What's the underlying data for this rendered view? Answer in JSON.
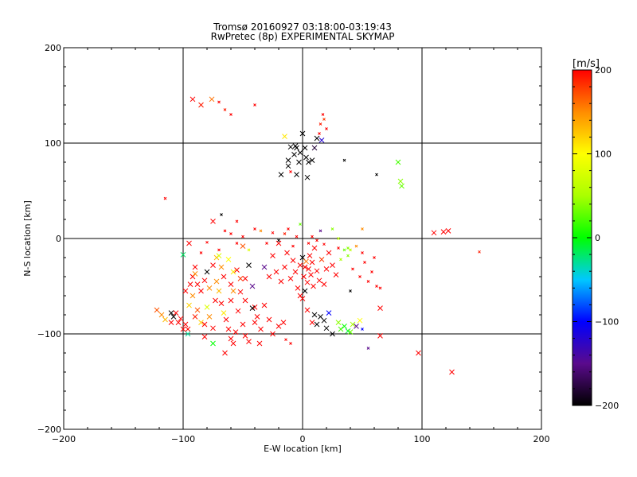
{
  "chart_data": {
    "type": "scatter",
    "title": "Tromsø 20160927 03:18:00-03:19:43",
    "subtitle": "RwPretec (8p) EXPERIMENTAL SKYMAP",
    "xlabel": "E-W location [km]",
    "ylabel": "N-S location [km]",
    "xlim": [
      -200,
      200
    ],
    "ylim": [
      -200,
      200
    ],
    "xticks": [
      -200,
      -100,
      0,
      100,
      200
    ],
    "yticks": [
      -200,
      -100,
      0,
      100,
      200
    ],
    "xtick_labels": [
      "−200",
      "−100",
      "0",
      "100",
      "200"
    ],
    "ytick_labels": [
      "−200",
      "−100",
      "0",
      "100",
      "200"
    ],
    "grid_lines": [
      -100,
      0,
      100
    ],
    "colorbar": {
      "label": "[m/s]",
      "range": [
        -200,
        200
      ],
      "ticks": [
        200,
        100,
        0,
        -100,
        -200
      ],
      "tick_labels": [
        "200",
        "100",
        "0",
        "−100",
        "−200"
      ],
      "position": "right"
    },
    "marker": "x",
    "points": [
      [
        -92,
        146,
        200,
        "l"
      ],
      [
        -85,
        140,
        190,
        "l"
      ],
      [
        -76,
        146,
        160,
        "l"
      ],
      [
        -70,
        143,
        200,
        "s"
      ],
      [
        -65,
        135,
        190,
        "s"
      ],
      [
        -60,
        130,
        200,
        "s"
      ],
      [
        -40,
        140,
        200,
        "s"
      ],
      [
        -15,
        107,
        110,
        "l"
      ],
      [
        -10,
        70,
        200,
        "s"
      ],
      [
        -7,
        88,
        -200,
        "l"
      ],
      [
        -5,
        95,
        -200,
        "l"
      ],
      [
        -3,
        80,
        -200,
        "l"
      ],
      [
        -2,
        90,
        -200,
        "l"
      ],
      [
        -18,
        67,
        -200,
        "l"
      ],
      [
        0,
        110,
        -200,
        "l"
      ],
      [
        2,
        95,
        -200,
        "l"
      ],
      [
        3,
        85,
        -200,
        "l"
      ],
      [
        4,
        64,
        -200,
        "l"
      ],
      [
        5,
        80,
        -200,
        "l"
      ],
      [
        8,
        82,
        -200,
        "l"
      ],
      [
        10,
        95,
        -180,
        "l"
      ],
      [
        12,
        105,
        -200,
        "l"
      ],
      [
        14,
        110,
        200,
        "s"
      ],
      [
        15,
        120,
        190,
        "s"
      ],
      [
        17,
        130,
        200,
        "s"
      ],
      [
        18,
        125,
        180,
        "s"
      ],
      [
        20,
        115,
        200,
        "s"
      ],
      [
        16,
        103,
        -120,
        "l"
      ],
      [
        -12,
        76,
        -200,
        "l"
      ],
      [
        -10,
        96,
        -200,
        "l"
      ],
      [
        -6,
        97,
        -200,
        "l"
      ],
      [
        -12,
        82,
        -200,
        "l"
      ],
      [
        -5,
        67,
        -200,
        "l"
      ],
      [
        35,
        82,
        -200,
        "s"
      ],
      [
        80,
        80,
        20,
        "l"
      ],
      [
        82,
        60,
        40,
        "l"
      ],
      [
        83,
        55,
        30,
        "l"
      ],
      [
        62,
        67,
        -200,
        "s"
      ],
      [
        -115,
        42,
        200,
        "s"
      ],
      [
        110,
        6,
        200,
        "l"
      ],
      [
        118,
        7,
        200,
        "l"
      ],
      [
        122,
        8,
        200,
        "l"
      ],
      [
        148,
        -14,
        190,
        "s"
      ],
      [
        -100,
        -17,
        -20,
        "l"
      ],
      [
        -95,
        -5,
        200,
        "l"
      ],
      [
        -92,
        -40,
        200,
        "l"
      ],
      [
        -90,
        -37,
        150,
        "l"
      ],
      [
        -88,
        -48,
        200,
        "l"
      ],
      [
        -85,
        -55,
        200,
        "l"
      ],
      [
        -82,
        -44,
        200,
        "l"
      ],
      [
        -80,
        -35,
        -200,
        "l"
      ],
      [
        -78,
        -52,
        150,
        "l"
      ],
      [
        -75,
        -28,
        200,
        "l"
      ],
      [
        -72,
        -20,
        130,
        "l"
      ],
      [
        -70,
        -18,
        80,
        "l"
      ],
      [
        -68,
        -30,
        150,
        "l"
      ],
      [
        -66,
        -40,
        200,
        "l"
      ],
      [
        -62,
        -22,
        100,
        "l"
      ],
      [
        -60,
        -48,
        200,
        "l"
      ],
      [
        -58,
        -55,
        150,
        "l"
      ],
      [
        -55,
        -33,
        200,
        "l"
      ],
      [
        -52,
        -42,
        180,
        "l"
      ],
      [
        -50,
        -8,
        170,
        "l"
      ],
      [
        -48,
        -65,
        200,
        "l"
      ],
      [
        -45,
        -28,
        -200,
        "l"
      ],
      [
        -42,
        -50,
        -150,
        "l"
      ],
      [
        -40,
        -72,
        200,
        "l"
      ],
      [
        -38,
        -82,
        200,
        "l"
      ],
      [
        -35,
        -95,
        200,
        "l"
      ],
      [
        -32,
        -30,
        -150,
        "l"
      ],
      [
        -28,
        -40,
        200,
        "l"
      ],
      [
        -25,
        -18,
        200,
        "l"
      ],
      [
        -22,
        -35,
        200,
        "l"
      ],
      [
        -20,
        -5,
        200,
        "l"
      ],
      [
        -18,
        -45,
        200,
        "l"
      ],
      [
        -15,
        -30,
        200,
        "l"
      ],
      [
        -13,
        -15,
        200,
        "l"
      ],
      [
        -10,
        -42,
        200,
        "l"
      ],
      [
        -8,
        -23,
        200,
        "l"
      ],
      [
        -6,
        -35,
        200,
        "l"
      ],
      [
        -4,
        -52,
        200,
        "l"
      ],
      [
        -2,
        -28,
        200,
        "l"
      ],
      [
        0,
        -20,
        -200,
        "l"
      ],
      [
        1,
        -40,
        200,
        "l"
      ],
      [
        2,
        -30,
        200,
        "l"
      ],
      [
        3,
        -24,
        160,
        "l"
      ],
      [
        4,
        -46,
        200,
        "l"
      ],
      [
        5,
        -32,
        200,
        "l"
      ],
      [
        6,
        -18,
        200,
        "l"
      ],
      [
        7,
        -38,
        200,
        "l"
      ],
      [
        8,
        -25,
        200,
        "l"
      ],
      [
        9,
        -50,
        200,
        "l"
      ],
      [
        10,
        -10,
        200,
        "l"
      ],
      [
        12,
        -34,
        200,
        "l"
      ],
      [
        14,
        -44,
        200,
        "l"
      ],
      [
        16,
        -22,
        180,
        "l"
      ],
      [
        18,
        -48,
        200,
        "l"
      ],
      [
        20,
        -32,
        200,
        "l"
      ],
      [
        22,
        -15,
        200,
        "l"
      ],
      [
        25,
        -28,
        200,
        "l"
      ],
      [
        28,
        -38,
        200,
        "l"
      ],
      [
        30,
        -10,
        200,
        "s"
      ],
      [
        32,
        -22,
        50,
        "s"
      ],
      [
        35,
        -12,
        30,
        "s"
      ],
      [
        38,
        -18,
        40,
        "s"
      ],
      [
        40,
        -55,
        -200,
        "s"
      ],
      [
        42,
        -32,
        200,
        "s"
      ],
      [
        45,
        -8,
        150,
        "s"
      ],
      [
        48,
        -40,
        200,
        "s"
      ],
      [
        50,
        -15,
        200,
        "s"
      ],
      [
        52,
        -25,
        200,
        "s"
      ],
      [
        55,
        -45,
        200,
        "s"
      ],
      [
        58,
        -35,
        200,
        "s"
      ],
      [
        60,
        -20,
        200,
        "s"
      ],
      [
        62,
        -50,
        200,
        "s"
      ],
      [
        65,
        -52,
        200,
        "s"
      ],
      [
        -2,
        -60,
        200,
        "l"
      ],
      [
        2,
        -55,
        -200,
        "l"
      ],
      [
        0,
        -63,
        200,
        "l"
      ],
      [
        4,
        -75,
        200,
        "l"
      ],
      [
        8,
        -88,
        200,
        "l"
      ],
      [
        10,
        -80,
        -200,
        "l"
      ],
      [
        12,
        -90,
        -200,
        "l"
      ],
      [
        15,
        -82,
        -200,
        "l"
      ],
      [
        18,
        -86,
        -200,
        "l"
      ],
      [
        20,
        -94,
        -200,
        "l"
      ],
      [
        22,
        -78,
        -100,
        "l"
      ],
      [
        25,
        -100,
        -200,
        "l"
      ],
      [
        30,
        -88,
        40,
        "l"
      ],
      [
        32,
        -95,
        20,
        "l"
      ],
      [
        35,
        -92,
        0,
        "l"
      ],
      [
        38,
        -97,
        -10,
        "l"
      ],
      [
        40,
        -98,
        30,
        "l"
      ],
      [
        42,
        -90,
        50,
        "l"
      ],
      [
        45,
        -92,
        -150,
        "l"
      ],
      [
        48,
        -86,
        100,
        "l"
      ],
      [
        50,
        -95,
        -100,
        "s"
      ],
      [
        55,
        -115,
        -150,
        "s"
      ],
      [
        65,
        -102,
        200,
        "l"
      ],
      [
        65,
        -73,
        200,
        "l"
      ],
      [
        97,
        -120,
        200,
        "l"
      ],
      [
        125,
        -140,
        200,
        "l"
      ],
      [
        -122,
        -75,
        170,
        "l"
      ],
      [
        -118,
        -80,
        150,
        "l"
      ],
      [
        -115,
        -85,
        130,
        "l"
      ],
      [
        -110,
        -88,
        200,
        "l"
      ],
      [
        -108,
        -82,
        -200,
        "l"
      ],
      [
        -106,
        -78,
        200,
        "l"
      ],
      [
        -102,
        -84,
        200,
        "l"
      ],
      [
        -98,
        -90,
        200,
        "l"
      ],
      [
        -96,
        -95,
        200,
        "l"
      ],
      [
        -95,
        -70,
        120,
        "l"
      ],
      [
        -92,
        -60,
        150,
        "l"
      ],
      [
        -90,
        -82,
        190,
        "l"
      ],
      [
        -88,
        -75,
        170,
        "l"
      ],
      [
        -85,
        -88,
        120,
        "l"
      ],
      [
        -82,
        -90,
        200,
        "l"
      ],
      [
        -80,
        -72,
        80,
        "l"
      ],
      [
        -78,
        -82,
        150,
        "l"
      ],
      [
        -75,
        -94,
        200,
        "l"
      ],
      [
        -73,
        -65,
        200,
        "l"
      ],
      [
        -70,
        -55,
        130,
        "l"
      ],
      [
        -68,
        -68,
        200,
        "l"
      ],
      [
        -66,
        -78,
        110,
        "l"
      ],
      [
        -64,
        -85,
        200,
        "l"
      ],
      [
        -62,
        -95,
        200,
        "l"
      ],
      [
        -60,
        -105,
        200,
        "l"
      ],
      [
        -58,
        -110,
        200,
        "l"
      ],
      [
        -56,
        -98,
        200,
        "l"
      ],
      [
        -54,
        -76,
        200,
        "l"
      ],
      [
        -50,
        -90,
        200,
        "l"
      ],
      [
        -48,
        -102,
        200,
        "l"
      ],
      [
        -45,
        -108,
        200,
        "l"
      ],
      [
        -42,
        -73,
        -200,
        "l"
      ],
      [
        -40,
        -88,
        200,
        "l"
      ],
      [
        -36,
        -110,
        200,
        "l"
      ],
      [
        -32,
        -70,
        200,
        "l"
      ],
      [
        -28,
        -85,
        200,
        "l"
      ],
      [
        -25,
        -100,
        200,
        "l"
      ],
      [
        -20,
        -92,
        200,
        "l"
      ],
      [
        -16,
        -88,
        200,
        "l"
      ],
      [
        -14,
        -106,
        200,
        "s"
      ],
      [
        -10,
        -110,
        200,
        "s"
      ],
      [
        -65,
        -120,
        200,
        "l"
      ],
      [
        -75,
        -110,
        0,
        "l"
      ],
      [
        -82,
        -103,
        200,
        "l"
      ],
      [
        -72,
        -45,
        150,
        "l"
      ],
      [
        -58,
        -35,
        110,
        "l"
      ],
      [
        -52,
        -56,
        200,
        "l"
      ],
      [
        -48,
        -42,
        200,
        "l"
      ],
      [
        -60,
        -65,
        200,
        "l"
      ],
      [
        -90,
        -30,
        200,
        "l"
      ],
      [
        -94,
        -48,
        200,
        "l"
      ],
      [
        -98,
        -55,
        200,
        "l"
      ],
      [
        -100,
        -95,
        200,
        "l"
      ],
      [
        -104,
        -88,
        200,
        "l"
      ],
      [
        -96,
        -100,
        -30,
        "l"
      ],
      [
        -110,
        -78,
        -200,
        "l"
      ],
      [
        -70,
        -12,
        200,
        "s"
      ],
      [
        -40,
        10,
        200,
        "s"
      ],
      [
        -35,
        8,
        150,
        "s"
      ],
      [
        -30,
        -5,
        200,
        "s"
      ],
      [
        -25,
        6,
        200,
        "s"
      ],
      [
        -20,
        -2,
        -200,
        "s"
      ],
      [
        -15,
        5,
        190,
        "s"
      ],
      [
        -12,
        10,
        200,
        "s"
      ],
      [
        -8,
        -8,
        200,
        "s"
      ],
      [
        -5,
        2,
        200,
        "s"
      ],
      [
        -2,
        15,
        30,
        "s"
      ],
      [
        5,
        -5,
        200,
        "s"
      ],
      [
        8,
        2,
        200,
        "s"
      ],
      [
        12,
        -2,
        200,
        "s"
      ],
      [
        15,
        8,
        -150,
        "s"
      ],
      [
        18,
        -6,
        200,
        "s"
      ],
      [
        38,
        -10,
        40,
        "s"
      ],
      [
        40,
        -12,
        60,
        "s"
      ],
      [
        25,
        10,
        40,
        "s"
      ],
      [
        30,
        0,
        60,
        "s"
      ],
      [
        50,
        10,
        150,
        "s"
      ],
      [
        -60,
        5,
        200,
        "s"
      ],
      [
        -55,
        -5,
        200,
        "s"
      ],
      [
        -65,
        8,
        200,
        "s"
      ],
      [
        -80,
        -4,
        200,
        "s"
      ],
      [
        -85,
        -15,
        200,
        "s"
      ],
      [
        -50,
        2,
        200,
        "s"
      ],
      [
        -45,
        -12,
        80,
        "s"
      ],
      [
        -68,
        25,
        -200,
        "s"
      ],
      [
        -75,
        18,
        200,
        "l"
      ],
      [
        -55,
        18,
        200,
        "s"
      ]
    ]
  }
}
